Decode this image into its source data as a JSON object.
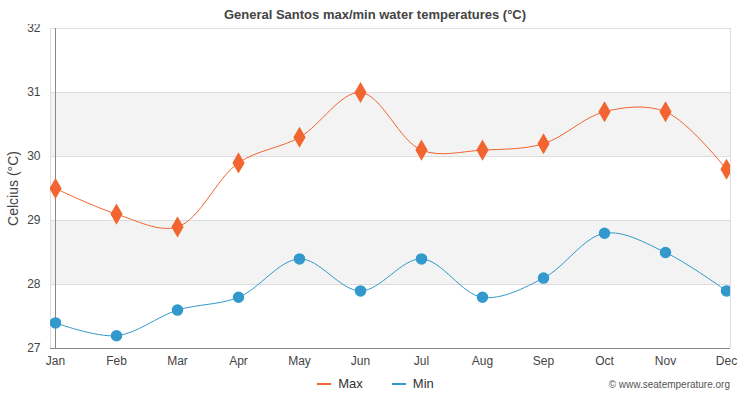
{
  "chart_data": {
    "type": "line",
    "title": "General Santos max/min water temperatures (°C)",
    "y_label": "Celcius (°C)",
    "source": "© www.seatemperature.org",
    "categories": [
      "Jan",
      "Feb",
      "Mar",
      "Apr",
      "May",
      "Jun",
      "Jul",
      "Aug",
      "Sep",
      "Oct",
      "Nov",
      "Dec"
    ],
    "series": [
      {
        "name": "Max",
        "color": "#f26530",
        "marker": "diamond",
        "values": [
          29.5,
          29.1,
          28.9,
          29.9,
          30.3,
          31.0,
          30.1,
          30.1,
          30.2,
          30.7,
          30.7,
          29.8
        ]
      },
      {
        "name": "Min",
        "color": "#3399cc",
        "marker": "circle",
        "values": [
          27.4,
          27.2,
          27.6,
          27.8,
          28.4,
          27.9,
          28.4,
          27.8,
          28.1,
          28.8,
          28.5,
          27.9
        ]
      }
    ],
    "ylim": [
      27,
      32
    ],
    "yticks": [
      27,
      28,
      29,
      30,
      31,
      32
    ],
    "grid": true,
    "legend": "bottom"
  }
}
